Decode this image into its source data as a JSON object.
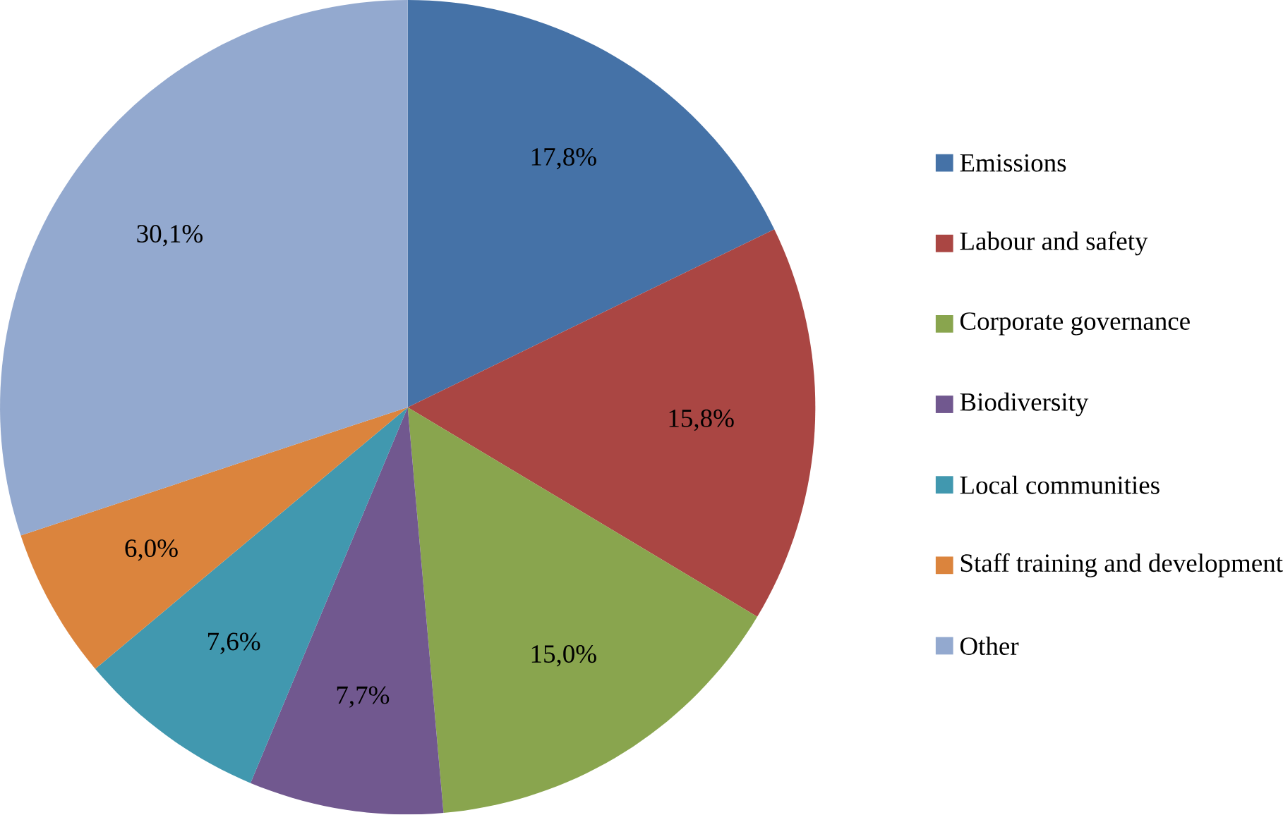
{
  "chart_data": {
    "type": "pie",
    "categories": [
      "Emissions",
      "Labour and safety",
      "Corporate governance",
      "Biodiversity",
      "Local communities",
      "Staff training and development",
      "Other"
    ],
    "values": [
      17.8,
      15.8,
      15.0,
      7.7,
      7.6,
      6.0,
      30.1
    ],
    "colors": [
      "#4572a7",
      "#aa4643",
      "#89a54e",
      "#71588f",
      "#4198af",
      "#db843d",
      "#93a9cf"
    ],
    "value_labels": [
      "17,8%",
      "15,8%",
      "15,0%",
      "7,7%",
      "7,6%",
      "6,0%",
      "30,1%"
    ],
    "legend": "right"
  }
}
